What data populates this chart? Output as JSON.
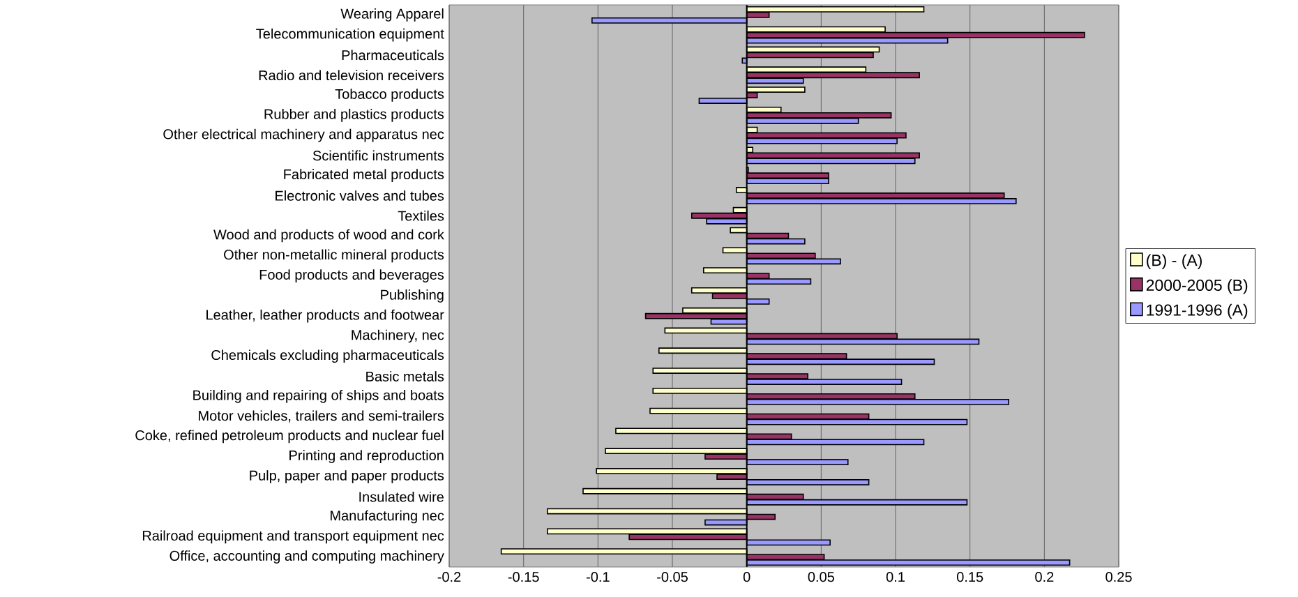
{
  "chart_data": {
    "type": "bar",
    "orientation": "horizontal",
    "categories": [
      "Wearing Apparel",
      "Telecommunication equipment",
      "Pharmaceuticals",
      "Radio and television receivers",
      "Tobacco products",
      "Rubber and plastics products",
      "Other electrical machinery and apparatus nec",
      "Scientific instruments",
      "Fabricated metal products",
      "Electronic valves and tubes",
      "Textiles",
      "Wood and products of wood and cork",
      "Other non-metallic mineral products",
      "Food products and beverages",
      "Publishing",
      "Leather, leather products and footwear",
      "Machinery, nec",
      "Chemicals excluding pharmaceuticals",
      "Basic metals",
      "Building and repairing of ships and boats",
      "Motor vehicles, trailers and semi-trailers",
      "Coke, refined petroleum products and nuclear fuel",
      "Printing and reproduction",
      "Pulp, paper and paper products",
      "Insulated wire",
      "Manufacturing nec",
      "Railroad equipment and transport equipment nec",
      "Office, accounting and computing machinery"
    ],
    "series": [
      {
        "name": "(B) - (A)",
        "color": "#ffffcc",
        "values": [
          0.119,
          0.093,
          0.089,
          0.08,
          0.039,
          0.023,
          0.007,
          0.004,
          0.001,
          -0.007,
          -0.009,
          -0.011,
          -0.016,
          -0.029,
          -0.037,
          -0.043,
          -0.055,
          -0.059,
          -0.063,
          -0.063,
          -0.065,
          -0.088,
          -0.095,
          -0.101,
          -0.11,
          -0.134,
          -0.134,
          -0.165
        ]
      },
      {
        "name": "2000-2005 (B)",
        "color": "#993366",
        "values": [
          0.015,
          0.227,
          0.085,
          0.116,
          0.007,
          0.097,
          0.107,
          0.116,
          0.055,
          0.173,
          -0.037,
          0.028,
          0.046,
          0.015,
          -0.023,
          -0.068,
          0.101,
          0.067,
          0.041,
          0.113,
          0.082,
          0.03,
          -0.028,
          -0.02,
          0.038,
          0.019,
          -0.079,
          0.052
        ]
      },
      {
        "name": "1991-1996 (A)",
        "color": "#9999ff",
        "values": [
          -0.104,
          0.135,
          -0.003,
          0.038,
          -0.032,
          0.075,
          0.101,
          0.113,
          0.055,
          0.181,
          -0.027,
          0.039,
          0.063,
          0.043,
          0.015,
          -0.024,
          0.156,
          0.126,
          0.104,
          0.176,
          0.148,
          0.119,
          0.068,
          0.082,
          0.148,
          -0.028,
          0.056,
          0.217
        ]
      }
    ],
    "xlim": [
      -0.2,
      0.25
    ],
    "xticks": [
      -0.2,
      -0.15,
      -0.1,
      -0.05,
      0,
      0.05,
      0.1,
      0.15,
      0.2,
      0.25
    ],
    "grid": "x",
    "legend": "right"
  }
}
